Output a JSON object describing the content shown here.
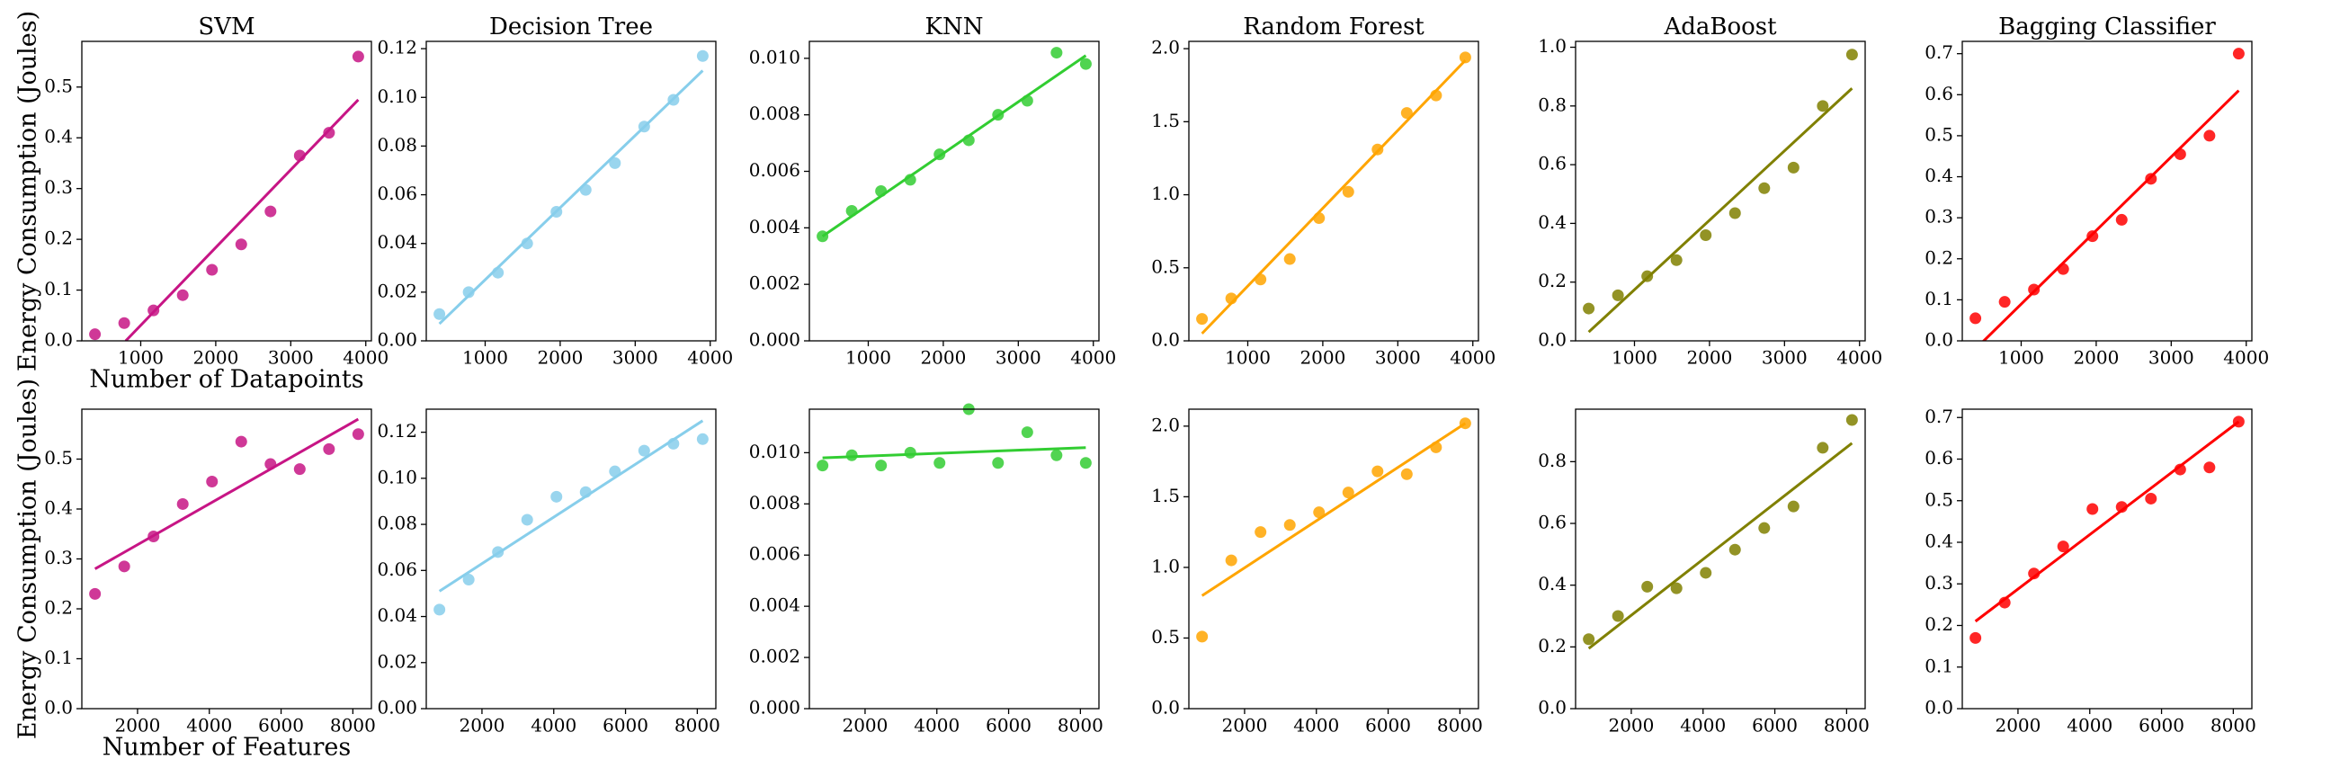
{
  "chart_data": [
    {
      "type": "scatter",
      "title": "SVM",
      "y_label": "Energy Consumption (Joules)",
      "x_label": "Number of Datapoints",
      "color": "#c71585",
      "x": [
        390,
        780,
        1170,
        1560,
        1950,
        2340,
        2730,
        3120,
        3510,
        3900
      ],
      "values": [
        0.013,
        0.035,
        0.06,
        0.09,
        0.14,
        0.19,
        0.255,
        0.365,
        0.41,
        0.56
      ],
      "trend_line": {
        "x": [
          800,
          3900
        ],
        "values": [
          0,
          0.475
        ]
      },
      "xlim": [
        215,
        4075
      ],
      "ylim": [
        0,
        0.59
      ],
      "xticks": [
        1000,
        2000,
        3000,
        4000
      ],
      "yticks": [
        {
          "value": 0,
          "label": "0.0"
        },
        0.1,
        0.2,
        0.3,
        0.4,
        0.5
      ]
    },
    {
      "type": "scatter",
      "title": "Decision Tree",
      "color": "#87ceeb",
      "x": [
        390,
        780,
        1170,
        1560,
        1950,
        2340,
        2730,
        3120,
        3510,
        3900
      ],
      "values": [
        0.011,
        0.02,
        0.028,
        0.04,
        0.053,
        0.062,
        0.073,
        0.088,
        0.099,
        0.117
      ],
      "trend_line": {
        "x": [
          390,
          3900
        ],
        "values": [
          0.007,
          0.111
        ]
      },
      "xlim": [
        215,
        4075
      ],
      "ylim": [
        0,
        0.123
      ],
      "xticks": [
        1000,
        2000,
        3000,
        4000
      ],
      "yticks": [
        {
          "value": 0,
          "label": "0.00"
        },
        {
          "value": 0.02,
          "label": "0.02"
        },
        {
          "value": 0.04,
          "label": "0.04"
        },
        {
          "value": 0.06,
          "label": "0.06"
        },
        {
          "value": 0.08,
          "label": "0.08"
        },
        {
          "value": 0.1,
          "label": "0.10"
        },
        {
          "value": 0.12,
          "label": "0.12"
        }
      ]
    },
    {
      "type": "scatter",
      "title": "KNN",
      "color": "#32cd32",
      "x": [
        390,
        780,
        1170,
        1560,
        1950,
        2340,
        2730,
        3120,
        3510,
        3900
      ],
      "values": [
        0.0037,
        0.0046,
        0.0053,
        0.0057,
        0.0066,
        0.0071,
        0.008,
        0.0085,
        0.0102,
        0.0098
      ],
      "trend_line": {
        "x": [
          390,
          3900
        ],
        "values": [
          0.0037,
          0.0101
        ]
      },
      "xlim": [
        215,
        4075
      ],
      "ylim": [
        0,
        0.0106
      ],
      "xticks": [
        1000,
        2000,
        3000,
        4000
      ],
      "yticks": [
        {
          "value": 0,
          "label": "0.000"
        },
        {
          "value": 0.002,
          "label": "0.002"
        },
        {
          "value": 0.004,
          "label": "0.004"
        },
        {
          "value": 0.006,
          "label": "0.006"
        },
        {
          "value": 0.008,
          "label": "0.008"
        },
        {
          "value": 0.01,
          "label": "0.010"
        }
      ]
    },
    {
      "type": "scatter",
      "title": "Random Forest",
      "color": "#ffa500",
      "x": [
        390,
        780,
        1170,
        1560,
        1950,
        2340,
        2730,
        3120,
        3510,
        3900
      ],
      "values": [
        0.15,
        0.29,
        0.42,
        0.56,
        0.84,
        1.02,
        1.31,
        1.56,
        1.68,
        1.94
      ],
      "trend_line": {
        "x": [
          390,
          3900
        ],
        "values": [
          0.05,
          1.92
        ]
      },
      "xlim": [
        215,
        4075
      ],
      "ylim": [
        0,
        2.05
      ],
      "xticks": [
        1000,
        2000,
        3000,
        4000
      ],
      "yticks": [
        {
          "value": 0,
          "label": "0.0"
        },
        0.5,
        {
          "value": 1,
          "label": "1.0"
        },
        1.5,
        {
          "value": 2,
          "label": "2.0"
        }
      ]
    },
    {
      "type": "scatter",
      "title": "AdaBoost",
      "color": "#808000",
      "x": [
        390,
        780,
        1170,
        1560,
        1950,
        2340,
        2730,
        3120,
        3510,
        3900
      ],
      "values": [
        0.11,
        0.155,
        0.22,
        0.275,
        0.36,
        0.435,
        0.52,
        0.59,
        0.8,
        0.975
      ],
      "trend_line": {
        "x": [
          390,
          3900
        ],
        "values": [
          0.03,
          0.86
        ]
      },
      "xlim": [
        215,
        4075
      ],
      "ylim": [
        0,
        1.02
      ],
      "xticks": [
        1000,
        2000,
        3000,
        4000
      ],
      "yticks": [
        {
          "value": 0,
          "label": "0.0"
        },
        0.2,
        0.4,
        0.6,
        0.8,
        {
          "value": 1,
          "label": "1.0"
        }
      ]
    },
    {
      "type": "scatter",
      "title": "Bagging Classifier",
      "color": "#ff0000",
      "x": [
        390,
        780,
        1170,
        1560,
        1950,
        2340,
        2730,
        3120,
        3510,
        3900
      ],
      "values": [
        0.055,
        0.095,
        0.125,
        0.175,
        0.255,
        0.295,
        0.395,
        0.455,
        0.5,
        0.7
      ],
      "trend_line": {
        "x": [
          390,
          3900
        ],
        "values": [
          -0.02,
          0.61
        ]
      },
      "xlim": [
        215,
        4075
      ],
      "ylim": [
        0,
        0.73
      ],
      "xticks": [
        1000,
        2000,
        3000,
        4000
      ],
      "yticks": [
        {
          "value": 0,
          "label": "0.0"
        },
        0.1,
        0.2,
        0.3,
        0.4,
        0.5,
        0.6,
        0.7
      ]
    },
    {
      "type": "scatter",
      "y_label": "Energy Consumption (Joules)",
      "x_label": "Number of Features",
      "color": "#c71585",
      "x": [
        815,
        1630,
        2445,
        3260,
        4075,
        4890,
        5705,
        6520,
        7335,
        8150
      ],
      "values": [
        0.23,
        0.285,
        0.345,
        0.41,
        0.455,
        0.535,
        0.49,
        0.48,
        0.52,
        0.55
      ],
      "trend_line": {
        "x": [
          815,
          8150
        ],
        "values": [
          0.28,
          0.58
        ]
      },
      "xlim": [
        448,
        8517
      ],
      "ylim": [
        0,
        0.6
      ],
      "xticks": [
        2000,
        4000,
        6000,
        8000
      ],
      "yticks": [
        {
          "value": 0,
          "label": "0.0"
        },
        0.1,
        0.2,
        0.3,
        0.4,
        0.5
      ]
    },
    {
      "type": "scatter",
      "color": "#87ceeb",
      "x": [
        815,
        1630,
        2445,
        3260,
        4075,
        4890,
        5705,
        6520,
        7335,
        8150
      ],
      "values": [
        0.043,
        0.056,
        0.068,
        0.082,
        0.092,
        0.094,
        0.103,
        0.112,
        0.115,
        0.117
      ],
      "trend_line": {
        "x": [
          815,
          8150
        ],
        "values": [
          0.051,
          0.125
        ]
      },
      "xlim": [
        448,
        8517
      ],
      "ylim": [
        0,
        0.13
      ],
      "xticks": [
        2000,
        4000,
        6000,
        8000
      ],
      "yticks": [
        {
          "value": 0,
          "label": "0.00"
        },
        {
          "value": 0.02,
          "label": "0.02"
        },
        {
          "value": 0.04,
          "label": "0.04"
        },
        {
          "value": 0.06,
          "label": "0.06"
        },
        {
          "value": 0.08,
          "label": "0.08"
        },
        {
          "value": 0.1,
          "label": "0.10"
        },
        {
          "value": 0.12,
          "label": "0.12"
        }
      ]
    },
    {
      "type": "scatter",
      "color": "#32cd32",
      "x": [
        815,
        1630,
        2445,
        3260,
        4075,
        4890,
        5705,
        6520,
        7335,
        8150
      ],
      "values": [
        0.0095,
        0.0099,
        0.0095,
        0.01,
        0.0096,
        0.0117,
        0.0096,
        0.0108,
        0.0099,
        0.0096
      ],
      "trend_line": {
        "x": [
          815,
          8150
        ],
        "values": [
          0.0098,
          0.0102
        ]
      },
      "xlim": [
        448,
        8517
      ],
      "ylim": [
        0,
        0.0117
      ],
      "xticks": [
        2000,
        4000,
        6000,
        8000
      ],
      "yticks": [
        {
          "value": 0,
          "label": "0.000"
        },
        {
          "value": 0.002,
          "label": "0.002"
        },
        {
          "value": 0.004,
          "label": "0.004"
        },
        {
          "value": 0.006,
          "label": "0.006"
        },
        {
          "value": 0.008,
          "label": "0.008"
        },
        {
          "value": 0.01,
          "label": "0.010"
        }
      ]
    },
    {
      "type": "scatter",
      "color": "#ffa500",
      "x": [
        815,
        1630,
        2445,
        3260,
        4075,
        4890,
        5705,
        6520,
        7335,
        8150
      ],
      "values": [
        0.51,
        1.05,
        1.25,
        1.3,
        1.39,
        1.53,
        1.68,
        1.66,
        1.85,
        2.02
      ],
      "trend_line": {
        "x": [
          815,
          8150
        ],
        "values": [
          0.8,
          2.02
        ]
      },
      "xlim": [
        448,
        8517
      ],
      "ylim": [
        0,
        2.12
      ],
      "xticks": [
        2000,
        4000,
        6000,
        8000
      ],
      "yticks": [
        {
          "value": 0,
          "label": "0.0"
        },
        0.5,
        {
          "value": 1,
          "label": "1.0"
        },
        1.5,
        {
          "value": 2,
          "label": "2.0"
        }
      ]
    },
    {
      "type": "scatter",
      "color": "#808000",
      "x": [
        815,
        1630,
        2445,
        3260,
        4075,
        4890,
        5705,
        6520,
        7335,
        8150
      ],
      "values": [
        0.225,
        0.3,
        0.395,
        0.39,
        0.44,
        0.515,
        0.585,
        0.655,
        0.845,
        0.935
      ],
      "trend_line": {
        "x": [
          815,
          8150
        ],
        "values": [
          0.195,
          0.86
        ]
      },
      "xlim": [
        448,
        8517
      ],
      "ylim": [
        0,
        0.97
      ],
      "xticks": [
        2000,
        4000,
        6000,
        8000
      ],
      "yticks": [
        {
          "value": 0,
          "label": "0.0"
        },
        0.2,
        0.4,
        0.6,
        0.8
      ]
    },
    {
      "type": "scatter",
      "color": "#ff0000",
      "x": [
        815,
        1630,
        2445,
        3260,
        4075,
        4890,
        5705,
        6520,
        7335,
        8150
      ],
      "values": [
        0.17,
        0.255,
        0.325,
        0.39,
        0.48,
        0.485,
        0.505,
        0.575,
        0.58,
        0.69
      ],
      "trend_line": {
        "x": [
          815,
          8150
        ],
        "values": [
          0.21,
          0.69
        ]
      },
      "xlim": [
        448,
        8517
      ],
      "ylim": [
        0,
        0.72
      ],
      "xticks": [
        2000,
        4000,
        6000,
        8000
      ],
      "yticks": [
        {
          "value": 0,
          "label": "0.0"
        },
        0.1,
        0.2,
        0.3,
        0.4,
        0.5,
        0.6,
        0.7
      ]
    }
  ]
}
